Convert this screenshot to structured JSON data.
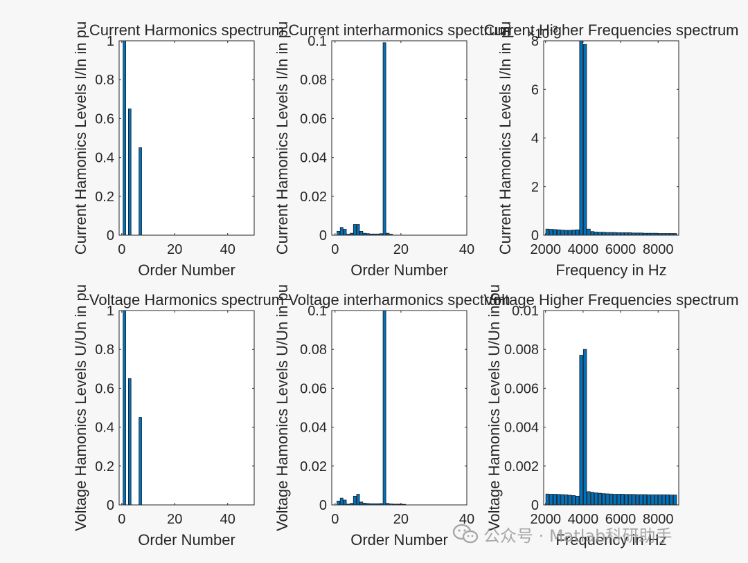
{
  "chart_data": [
    {
      "id": "p1",
      "type": "bar",
      "title": "Current Harmonics spectrum",
      "xlabel": "Order Number",
      "ylabel": "Current Hamonics Levels I/In in pu",
      "xlim": [
        -1,
        50
      ],
      "ylim": [
        0,
        1
      ],
      "xticks": [
        0,
        20,
        40
      ],
      "xtick_labels": [
        "0",
        "20",
        "40"
      ],
      "yticks": [
        0,
        0.2,
        0.4,
        0.6,
        0.8,
        1
      ],
      "ytick_labels": [
        "0",
        "0.2",
        "0.4",
        "0.6",
        "0.8",
        "1"
      ],
      "bar_width": 1,
      "x": [
        1,
        3,
        7
      ],
      "values": [
        1.0,
        0.65,
        0.45
      ]
    },
    {
      "id": "p2",
      "type": "bar",
      "title": "Current interharmonics spectrum",
      "xlabel": "Order Number",
      "ylabel": "Current Hamonics Levels I/In in pu",
      "xlim": [
        -1,
        40
      ],
      "ylim": [
        0,
        0.1
      ],
      "xticks": [
        0,
        20,
        40
      ],
      "xtick_labels": [
        "0",
        "20",
        "40"
      ],
      "yticks": [
        0,
        0.02,
        0.04,
        0.06,
        0.08,
        0.1
      ],
      "ytick_labels": [
        "0",
        "0.02",
        "0.04",
        "0.06",
        "0.08",
        "0.1"
      ],
      "bar_width": 0.85,
      "x": [
        1,
        2,
        3,
        4,
        5,
        6,
        7,
        8,
        9,
        10,
        11,
        12,
        13,
        14,
        15,
        16,
        17
      ],
      "values": [
        0.002,
        0.004,
        0.003,
        0.0005,
        0.001,
        0.0055,
        0.0055,
        0.002,
        0.001,
        0.0008,
        0.0006,
        0.0006,
        0.0006,
        0.0008,
        0.099,
        0.001,
        0.0005
      ]
    },
    {
      "id": "p3",
      "type": "bar",
      "title": "Current Higher Frequencies spectrum",
      "xlabel": "Frequency in Hz",
      "ylabel": "Current Hamonics Levels I/In in pu",
      "xlim": [
        1900,
        9100
      ],
      "ylim": [
        0,
        8
      ],
      "y_exponent_base": "×10",
      "y_exponent_power": "-3",
      "xticks": [
        2000,
        4000,
        6000,
        8000
      ],
      "xtick_labels": [
        "2000",
        "4000",
        "6000",
        "8000"
      ],
      "yticks": [
        0,
        2,
        4,
        6,
        8
      ],
      "ytick_labels": [
        "0",
        "2",
        "4",
        "6",
        "8"
      ],
      "bar_width": 170,
      "x": [
        2100,
        2300,
        2500,
        2700,
        2900,
        3100,
        3300,
        3500,
        3700,
        3900,
        4100,
        4300,
        4500,
        4700,
        4900,
        5100,
        5300,
        5500,
        5700,
        5900,
        6100,
        6300,
        6500,
        6700,
        6900,
        7100,
        7300,
        7500,
        7700,
        7900,
        8100,
        8300,
        8500,
        8700,
        8900
      ],
      "values": [
        0.25,
        0.24,
        0.23,
        0.22,
        0.21,
        0.2,
        0.2,
        0.21,
        0.22,
        8.0,
        7.85,
        0.25,
        0.15,
        0.13,
        0.12,
        0.12,
        0.11,
        0.11,
        0.11,
        0.1,
        0.1,
        0.1,
        0.1,
        0.09,
        0.09,
        0.09,
        0.08,
        0.08,
        0.08,
        0.08,
        0.07,
        0.07,
        0.07,
        0.07,
        0.07
      ]
    },
    {
      "id": "p4",
      "type": "bar",
      "title": "Voltage Harmonics spectrum",
      "xlabel": "Order Number",
      "ylabel": "Voltage Hamonics Levels U/Un in pu",
      "xlim": [
        -1,
        50
      ],
      "ylim": [
        0,
        1
      ],
      "xticks": [
        0,
        20,
        40
      ],
      "xtick_labels": [
        "0",
        "20",
        "40"
      ],
      "yticks": [
        0,
        0.2,
        0.4,
        0.6,
        0.8,
        1
      ],
      "ytick_labels": [
        "0",
        "0.2",
        "0.4",
        "0.6",
        "0.8",
        "1"
      ],
      "bar_width": 1,
      "x": [
        1,
        3,
        7
      ],
      "values": [
        1.0,
        0.65,
        0.45
      ]
    },
    {
      "id": "p5",
      "type": "bar",
      "title": "Voltage interharmonics spectrum",
      "xlabel": "Order Number",
      "ylabel": "Voltage Hamonics Levels U/Un in pu",
      "xlim": [
        -1,
        40
      ],
      "ylim": [
        0,
        0.1
      ],
      "xticks": [
        0,
        20,
        40
      ],
      "xtick_labels": [
        "0",
        "20",
        "40"
      ],
      "yticks": [
        0,
        0.02,
        0.04,
        0.06,
        0.08,
        0.1
      ],
      "ytick_labels": [
        "0",
        "0.02",
        "0.04",
        "0.06",
        "0.08",
        "0.1"
      ],
      "bar_width": 0.85,
      "x": [
        1,
        2,
        3,
        4,
        5,
        6,
        7,
        8,
        9,
        10,
        11,
        12,
        13,
        14,
        15,
        16,
        17,
        18,
        19,
        20,
        21
      ],
      "values": [
        0.002,
        0.0035,
        0.0025,
        0.0004,
        0.0008,
        0.0045,
        0.0055,
        0.0015,
        0.0009,
        0.0007,
        0.0006,
        0.0006,
        0.0006,
        0.0007,
        0.1,
        0.0008,
        0.0005,
        0.0004,
        0.0004,
        0.0004,
        0.0003
      ]
    },
    {
      "id": "p6",
      "type": "bar",
      "title": "Voltage Higher Frequencies spectrum",
      "xlabel": "Frequency in Hz",
      "ylabel": "Voltage Hamonics Levels U/Un in pu",
      "xlim": [
        1900,
        9100
      ],
      "ylim": [
        0,
        0.01
      ],
      "xticks": [
        2000,
        4000,
        6000,
        8000
      ],
      "xtick_labels": [
        "2000",
        "4000",
        "6000",
        "8000"
      ],
      "yticks": [
        0,
        0.002,
        0.004,
        0.006,
        0.008,
        0.01
      ],
      "ytick_labels": [
        "0",
        "0.002",
        "0.004",
        "0.006",
        "0.008",
        "0.01"
      ],
      "bar_width": 170,
      "x": [
        2100,
        2300,
        2500,
        2700,
        2900,
        3100,
        3300,
        3500,
        3700,
        3900,
        4100,
        4300,
        4500,
        4700,
        4900,
        5100,
        5300,
        5500,
        5700,
        5900,
        6100,
        6300,
        6500,
        6700,
        6900,
        7100,
        7300,
        7500,
        7700,
        7900,
        8100,
        8300,
        8500,
        8700,
        8900
      ],
      "values": [
        0.00056,
        0.00055,
        0.00055,
        0.00054,
        0.00053,
        0.00052,
        0.0005,
        0.00048,
        0.00045,
        0.0077,
        0.008,
        0.00068,
        0.00065,
        0.00062,
        0.0006,
        0.00058,
        0.00057,
        0.00056,
        0.00055,
        0.00055,
        0.00055,
        0.00054,
        0.00054,
        0.00054,
        0.00053,
        0.00053,
        0.00053,
        0.00052,
        0.00052,
        0.00052,
        0.00052,
        0.00052,
        0.00052,
        0.00051,
        0.00051
      ]
    }
  ],
  "style": {
    "bar_color": "#0072BD",
    "bar_edge": "#1a1a1a",
    "axes_bg": "#ffffff",
    "axis_color": "#262626"
  },
  "watermark": {
    "text": "公众号 · Matlab科研助手",
    "icon": "wechat-icon"
  }
}
